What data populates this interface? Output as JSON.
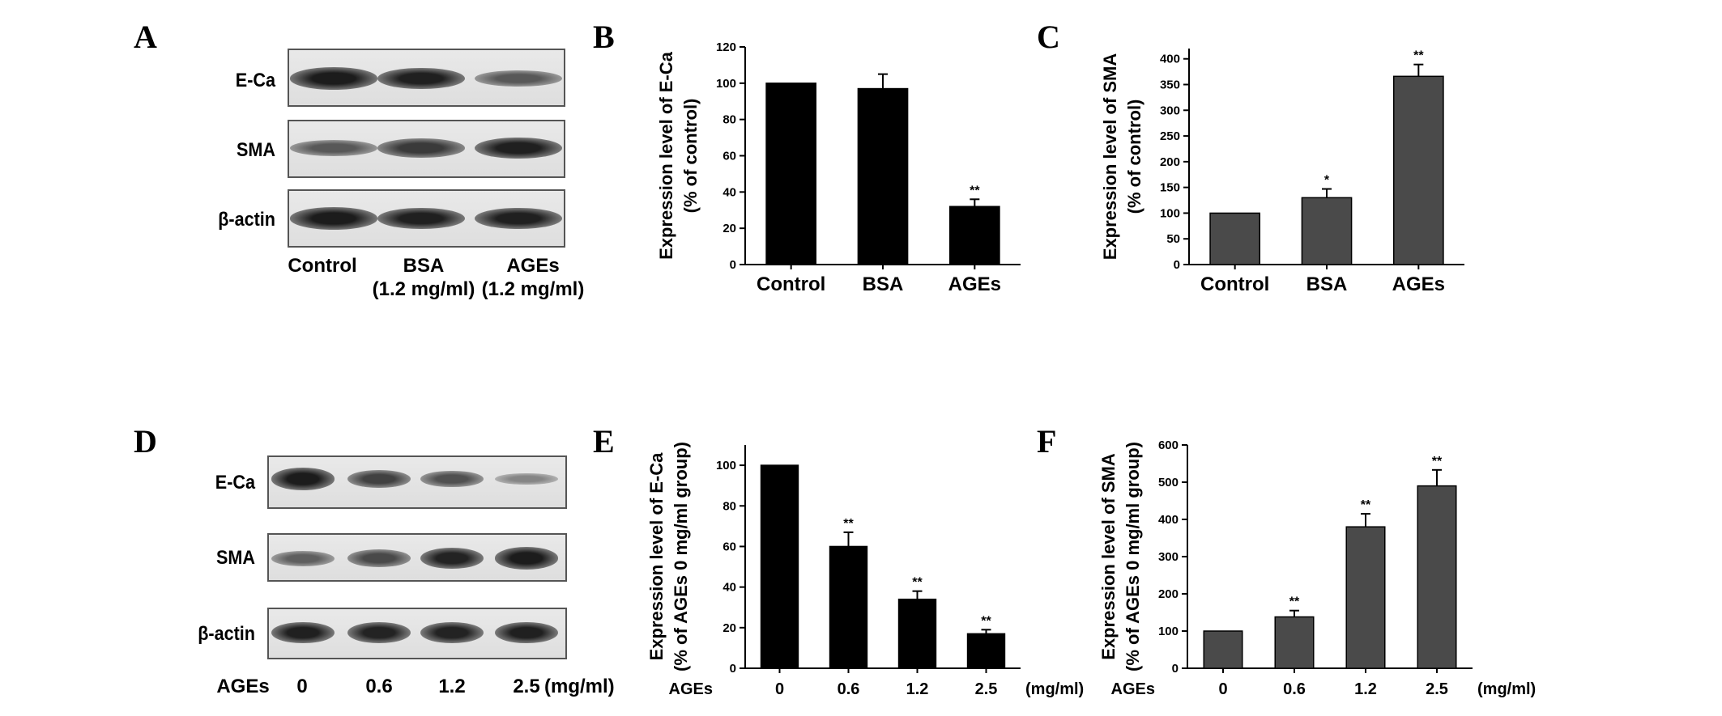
{
  "panels": {
    "A": "A",
    "B": "B",
    "C": "C",
    "D": "D",
    "E": "E",
    "F": "F"
  },
  "blot_top": {
    "rows": [
      "E-Ca",
      "SMA",
      "β-actin"
    ],
    "lanes": [
      {
        "line1": "Control",
        "line2": ""
      },
      {
        "line1": "BSA",
        "line2": "(1.2 mg/ml)"
      },
      {
        "line1": "AGEs",
        "line2": "(1.2 mg/ml)"
      }
    ],
    "intensity": [
      [
        0.95,
        0.92,
        0.55
      ],
      [
        0.55,
        0.75,
        0.92
      ],
      [
        0.95,
        0.92,
        0.92
      ]
    ]
  },
  "blot_bottom": {
    "rows": [
      "E-Ca",
      "SMA",
      "β-actin"
    ],
    "prefix": "AGEs",
    "lanes": [
      "0",
      "0.6",
      "1.2",
      "2.5"
    ],
    "unit": "(mg/ml)",
    "intensity": [
      [
        0.95,
        0.7,
        0.6,
        0.25
      ],
      [
        0.5,
        0.65,
        0.9,
        0.95
      ],
      [
        0.92,
        0.9,
        0.9,
        0.92
      ]
    ]
  },
  "chart_data": [
    {
      "id": "B",
      "type": "bar",
      "categories": [
        "Control",
        "BSA",
        "AGEs"
      ],
      "values": [
        100,
        97,
        32
      ],
      "errors": [
        0,
        8,
        4
      ],
      "significance": [
        "",
        "",
        "**"
      ],
      "ylabel_line1": "Expression level of E-Ca",
      "ylabel_line2": "(% of control)",
      "ylim": [
        0,
        120
      ],
      "yticks": [
        0,
        20,
        40,
        60,
        80,
        100,
        120
      ],
      "xprefix": "",
      "xunit": "",
      "color": "#000000"
    },
    {
      "id": "C",
      "type": "bar",
      "categories": [
        "Control",
        "BSA",
        "AGEs"
      ],
      "values": [
        100,
        130,
        366
      ],
      "errors": [
        0,
        17,
        23
      ],
      "significance": [
        "",
        "*",
        "**"
      ],
      "ylabel_line1": "Expression level of SMA",
      "ylabel_line2": "(% of control)",
      "ylim": [
        0,
        420
      ],
      "yticks": [
        0,
        50,
        100,
        150,
        200,
        250,
        300,
        350,
        400
      ],
      "xprefix": "",
      "xunit": "",
      "color": "#4a4a4a"
    },
    {
      "id": "E",
      "type": "bar",
      "categories": [
        "0",
        "0.6",
        "1.2",
        "2.5"
      ],
      "values": [
        100,
        60,
        34,
        17
      ],
      "errors": [
        0,
        7,
        4,
        2
      ],
      "significance": [
        "",
        "**",
        "**",
        "**"
      ],
      "ylabel_line1": "Expression level of E-Ca",
      "ylabel_line2": "(% of AGEs 0 mg/ml group)",
      "ylim": [
        0,
        110
      ],
      "yticks": [
        0,
        20,
        40,
        60,
        80,
        100
      ],
      "xprefix": "AGEs",
      "xunit": "(mg/ml)",
      "color": "#000000"
    },
    {
      "id": "F",
      "type": "bar",
      "categories": [
        "0",
        "0.6",
        "1.2",
        "2.5"
      ],
      "values": [
        100,
        138,
        380,
        490
      ],
      "errors": [
        0,
        17,
        35,
        43
      ],
      "significance": [
        "",
        "**",
        "**",
        "**"
      ],
      "ylabel_line1": "Expression level of SMA",
      "ylabel_line2": "(% of AGEs 0 mg/ml group)",
      "ylim": [
        0,
        600
      ],
      "yticks": [
        0,
        100,
        200,
        300,
        400,
        500,
        600
      ],
      "xprefix": "AGEs",
      "xunit": "(mg/ml)",
      "color": "#4a4a4a"
    }
  ]
}
